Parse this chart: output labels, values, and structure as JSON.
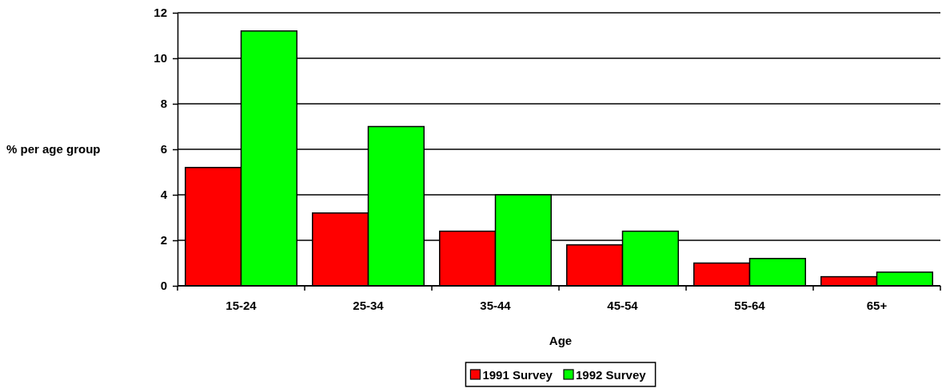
{
  "chart_data": {
    "type": "bar",
    "xlabel": "Age",
    "ylabel": "% per age group",
    "categories": [
      "15-24",
      "25-34",
      "35-44",
      "45-54",
      "55-64",
      "65+"
    ],
    "series": [
      {
        "name": "1991 Survey",
        "color": "#ff0000",
        "values": [
          5.2,
          3.2,
          2.4,
          1.8,
          1.0,
          0.4
        ]
      },
      {
        "name": "1992 Survey",
        "color": "#00ff00",
        "values": [
          11.2,
          7.0,
          4.0,
          2.4,
          1.2,
          0.6
        ]
      }
    ],
    "ylim": [
      0,
      12
    ],
    "yticks": [
      0,
      2,
      4,
      6,
      8,
      10,
      12
    ],
    "grid": "y",
    "legend": "bottom"
  }
}
